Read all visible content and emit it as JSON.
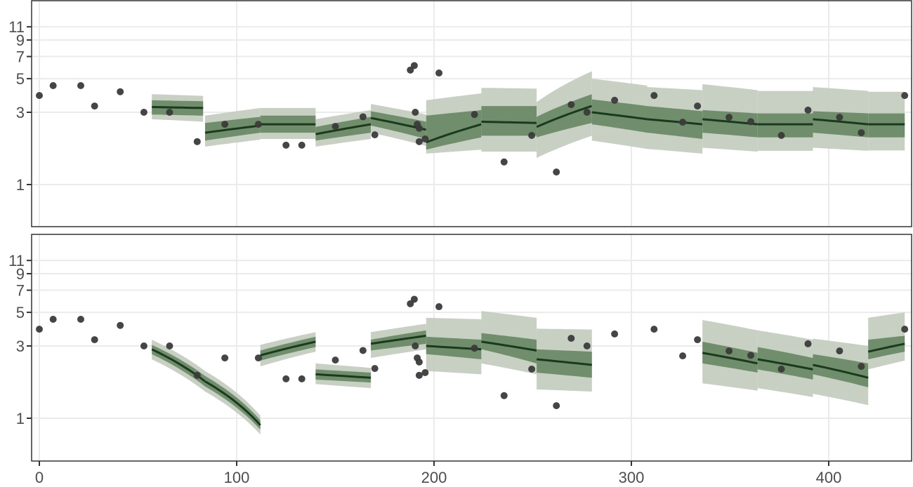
{
  "chart_data": [
    {
      "type": "scatter",
      "panel": "top",
      "title": "",
      "xlabel": "",
      "ylabel": "",
      "x_scale": "linear",
      "y_scale": "log",
      "xlim": [
        -3,
        443
      ],
      "ylim": [
        0.55,
        15
      ],
      "x_ticks": [
        0,
        100,
        200,
        300,
        400
      ],
      "y_ticks": [
        1,
        3,
        5,
        7,
        9,
        11
      ],
      "grid": true,
      "legend": "none",
      "points": {
        "name": "observations",
        "x": [
          0,
          7,
          21,
          28,
          41,
          53,
          66,
          80,
          94,
          111,
          125,
          133,
          150,
          164,
          170,
          188,
          190,
          190.5,
          191.5,
          192.5,
          192.5,
          195.5,
          202.5,
          220.5,
          235.5,
          249.5,
          262,
          269.5,
          277.5,
          291.5,
          311.5,
          326,
          333.5,
          349.5,
          360.5,
          376,
          389.5,
          405.5,
          416.5,
          438.5
        ],
        "y": [
          3.87,
          4.5,
          4.5,
          3.3,
          4.1,
          3.0,
          3.0,
          1.92,
          2.5,
          2.5,
          1.82,
          1.82,
          2.42,
          2.8,
          2.13,
          5.7,
          6.1,
          3.0,
          2.5,
          2.35,
          1.92,
          2.0,
          5.45,
          2.9,
          1.41,
          2.11,
          1.21,
          3.37,
          3.0,
          3.6,
          3.87,
          2.58,
          3.3,
          2.78,
          2.6,
          2.11,
          3.1,
          2.78,
          2.2,
          3.87
        ]
      },
      "segments": [
        {
          "x0": 57,
          "x1": 83,
          "median": [
            3.25,
            3.2
          ],
          "inner": [
            [
              2.9,
              3.6
            ],
            [
              2.85,
              3.55
            ]
          ],
          "outer": [
            [
              2.7,
              3.95
            ],
            [
              2.6,
              3.85
            ]
          ]
        },
        {
          "x0": 84,
          "x1": 112,
          "median": [
            2.2,
            2.45
          ],
          "inner": [
            [
              1.95,
              2.55
            ],
            [
              2.2,
              2.8
            ]
          ],
          "outer": [
            [
              1.78,
              2.85
            ],
            [
              1.98,
              3.2
            ]
          ]
        },
        {
          "x0": 112,
          "x1": 140,
          "median": [
            2.5,
            2.5
          ],
          "inner": [
            [
              2.2,
              2.85
            ],
            [
              2.2,
              2.85
            ]
          ],
          "outer": [
            [
              2.0,
              3.2
            ],
            [
              2.0,
              3.2
            ]
          ]
        },
        {
          "x0": 140,
          "x1": 168,
          "median": [
            2.15,
            2.5
          ],
          "inner": [
            [
              1.95,
              2.4
            ],
            [
              2.2,
              2.8
            ]
          ],
          "outer": [
            [
              1.78,
              2.7
            ],
            [
              2.0,
              3.1
            ]
          ]
        },
        {
          "x0": 168,
          "x1": 196,
          "median": [
            2.75,
            2.3
          ],
          "inner": [
            [
              2.45,
              3.05
            ],
            [
              2.0,
              2.6
            ]
          ],
          "outer": [
            [
              2.2,
              3.4
            ],
            [
              1.8,
              2.9
            ]
          ]
        },
        {
          "x0": 196,
          "x1": 224,
          "median": [
            1.9,
            2.5
          ],
          "inner": [
            [
              1.7,
              2.85
            ],
            [
              2.05,
              3.1
            ]
          ],
          "outer": [
            [
              1.6,
              3.6
            ],
            [
              1.7,
              4.0
            ]
          ]
        },
        {
          "x0": 224,
          "x1": 252,
          "median": [
            2.6,
            2.55
          ],
          "inner": [
            [
              2.1,
              3.3
            ],
            [
              2.1,
              3.3
            ]
          ],
          "outer": [
            [
              1.65,
              4.35
            ],
            [
              1.65,
              4.3
            ]
          ]
        },
        {
          "x0": 252,
          "x1": 280,
          "median": [
            2.4,
            3.3
          ],
          "inner": [
            [
              2.05,
              2.8
            ],
            [
              2.55,
              3.95
            ]
          ],
          "outer": [
            [
              1.5,
              3.5
            ],
            [
              2.1,
              5.6
            ]
          ]
        },
        {
          "x0": 280,
          "x1": 308,
          "median": [
            3.0,
            2.7
          ],
          "inner": [
            [
              2.5,
              3.65
            ],
            [
              2.2,
              3.3
            ]
          ],
          "outer": [
            [
              1.95,
              5.0
            ],
            [
              1.72,
              4.5
            ]
          ]
        },
        {
          "x0": 308,
          "x1": 336,
          "median": [
            2.7,
            2.5
          ],
          "inner": [
            [
              2.2,
              3.3
            ],
            [
              2.0,
              3.05
            ]
          ],
          "outer": [
            [
              1.72,
              4.4
            ],
            [
              1.6,
              4.2
            ]
          ]
        },
        {
          "x0": 336,
          "x1": 364,
          "median": [
            2.7,
            2.5
          ],
          "inner": [
            [
              2.2,
              3.1
            ],
            [
              2.05,
              2.95
            ]
          ],
          "outer": [
            [
              1.75,
              4.6
            ],
            [
              1.65,
              4.2
            ]
          ]
        },
        {
          "x0": 364,
          "x1": 392,
          "median": [
            2.5,
            2.5
          ],
          "inner": [
            [
              2.05,
              2.95
            ],
            [
              2.05,
              2.95
            ]
          ],
          "outer": [
            [
              1.67,
              4.15
            ],
            [
              1.67,
              4.15
            ]
          ]
        },
        {
          "x0": 392,
          "x1": 420,
          "median": [
            2.7,
            2.5
          ],
          "inner": [
            [
              2.2,
              3.05
            ],
            [
              2.05,
              2.95
            ]
          ],
          "outer": [
            [
              1.75,
              4.4
            ],
            [
              1.67,
              4.15
            ]
          ]
        },
        {
          "x0": 420,
          "x1": 438.5,
          "median": [
            2.5,
            2.5
          ],
          "inner": [
            [
              2.05,
              2.95
            ],
            [
              2.05,
              2.95
            ]
          ],
          "outer": [
            [
              1.68,
              4.1
            ],
            [
              1.68,
              4.1
            ]
          ]
        }
      ]
    },
    {
      "type": "scatter",
      "panel": "bottom",
      "title": "",
      "xlabel": "",
      "ylabel": "",
      "x_scale": "linear",
      "y_scale": "log",
      "xlim": [
        -3,
        443
      ],
      "ylim": [
        0.55,
        15
      ],
      "x_ticks": [
        0,
        100,
        200,
        300,
        400
      ],
      "y_ticks": [
        1,
        3,
        5,
        7,
        9,
        11
      ],
      "grid": true,
      "legend": "none",
      "points": {
        "name": "observations",
        "x": [
          0,
          7,
          21,
          28,
          41,
          53,
          66,
          80,
          94,
          111,
          125,
          133,
          150,
          164,
          170,
          188,
          190,
          190.5,
          191.5,
          192.5,
          192.5,
          195.5,
          202.5,
          220.5,
          235.5,
          249.5,
          262,
          269.5,
          277.5,
          291.5,
          311.5,
          326,
          333.5,
          349.5,
          360.5,
          376,
          389.5,
          405.5,
          416.5,
          438.5
        ],
        "y": [
          3.87,
          4.5,
          4.5,
          3.3,
          4.1,
          3.0,
          3.0,
          1.92,
          2.5,
          2.5,
          1.82,
          1.82,
          2.42,
          2.8,
          2.13,
          5.7,
          6.1,
          3.0,
          2.5,
          2.35,
          1.92,
          2.0,
          5.45,
          2.9,
          1.41,
          2.11,
          1.21,
          3.37,
          3.0,
          3.6,
          3.87,
          2.58,
          3.3,
          2.78,
          2.6,
          2.11,
          3.1,
          2.78,
          2.2,
          3.87
        ]
      },
      "segments": [
        {
          "x0": 57,
          "x1": 84,
          "median": [
            2.85,
            1.75
          ],
          "inner": [
            [
              2.65,
              3.05
            ],
            [
              1.62,
              1.9
            ]
          ],
          "outer": [
            [
              2.45,
              3.3
            ],
            [
              1.5,
              2.05
            ]
          ]
        },
        {
          "x0": 84,
          "x1": 112,
          "median": [
            1.75,
            0.9
          ],
          "inner": [
            [
              1.62,
              1.9
            ],
            [
              0.84,
              0.97
            ]
          ],
          "outer": [
            [
              1.5,
              2.05
            ],
            [
              0.78,
              1.04
            ]
          ]
        },
        {
          "x0": 112,
          "x1": 140,
          "median": [
            2.6,
            3.2
          ],
          "inner": [
            [
              2.4,
              2.8
            ],
            [
              2.95,
              3.45
            ]
          ],
          "outer": [
            [
              2.2,
              3.05
            ],
            [
              2.75,
              3.7
            ]
          ]
        },
        {
          "x0": 140,
          "x1": 168,
          "median": [
            1.95,
            1.85
          ],
          "inner": [
            [
              1.8,
              2.1
            ],
            [
              1.72,
              2.0
            ]
          ],
          "outer": [
            [
              1.68,
              2.3
            ],
            [
              1.58,
              2.15
            ]
          ]
        },
        {
          "x0": 168,
          "x1": 196,
          "median": [
            3.1,
            3.5
          ],
          "inner": [
            [
              2.8,
              3.3
            ],
            [
              3.1,
              3.8
            ]
          ],
          "outer": [
            [
              2.5,
              3.7
            ],
            [
              2.85,
              4.2
            ]
          ]
        },
        {
          "x0": 196,
          "x1": 224,
          "median": [
            3.0,
            2.85
          ],
          "inner": [
            [
              2.65,
              3.45
            ],
            [
              2.45,
              3.3
            ]
          ],
          "outer": [
            [
              2.05,
              4.6
            ],
            [
              1.95,
              4.5
            ]
          ]
        },
        {
          "x0": 224,
          "x1": 252,
          "median": [
            3.2,
            2.8
          ],
          "inner": [
            [
              2.85,
              3.65
            ],
            [
              2.3,
              3.3
            ]
          ],
          "outer": [
            [
              2.3,
              5.1
            ],
            [
              1.95,
              4.6
            ]
          ]
        },
        {
          "x0": 252,
          "x1": 280,
          "median": [
            2.45,
            2.25
          ],
          "inner": [
            [
              2.0,
              2.85
            ],
            [
              1.85,
              2.75
            ]
          ],
          "outer": [
            [
              1.55,
              3.9
            ],
            [
              1.5,
              3.85
            ]
          ]
        },
        {
          "x0": 336,
          "x1": 364,
          "median": [
            2.7,
            2.3
          ],
          "inner": [
            [
              2.3,
              3.2
            ],
            [
              2.0,
              2.7
            ]
          ],
          "outer": [
            [
              1.7,
              4.45
            ],
            [
              1.52,
              3.8
            ]
          ]
        },
        {
          "x0": 364,
          "x1": 392,
          "median": [
            2.45,
            2.1
          ],
          "inner": [
            [
              2.1,
              2.95
            ],
            [
              1.8,
              2.5
            ]
          ],
          "outer": [
            [
              1.58,
              3.8
            ],
            [
              1.38,
              3.3
            ]
          ]
        },
        {
          "x0": 392,
          "x1": 420,
          "median": [
            2.25,
            1.85
          ],
          "inner": [
            [
              1.95,
              2.65
            ],
            [
              1.6,
              2.3
            ]
          ],
          "outer": [
            [
              1.45,
              3.35
            ],
            [
              1.22,
              3.0
            ]
          ]
        },
        {
          "x0": 420,
          "x1": 438.5,
          "median": [
            2.75,
            3.1
          ],
          "inner": [
            [
              2.45,
              3.3
            ],
            [
              2.75,
              3.5
            ]
          ],
          "outer": [
            [
              2.1,
              4.6
            ],
            [
              2.4,
              5.0
            ]
          ]
        }
      ]
    }
  ],
  "axes": {
    "y_tick_labels": [
      "1",
      "3",
      "5",
      "7",
      "9",
      "11"
    ],
    "x_tick_labels": [
      "0",
      "100",
      "200",
      "300",
      "400"
    ]
  },
  "colors": {
    "outer_band": "#c4cdbf",
    "inner_band": "#6b8a66",
    "median_line": "#1a3a1e",
    "points": "#3b3b3b",
    "grid": "#ebebeb",
    "panel_border": "#333333",
    "tick_text": "#4d4d4d"
  }
}
